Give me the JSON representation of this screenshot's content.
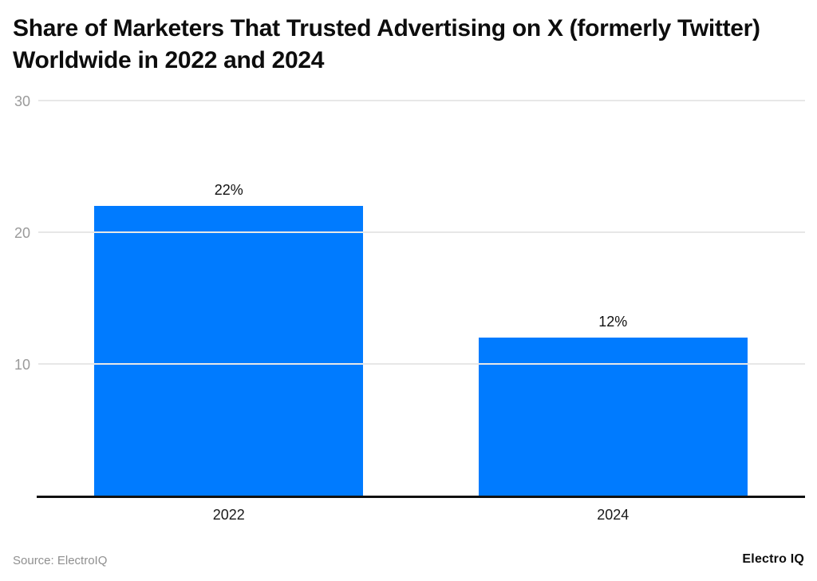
{
  "title": "Share of Marketers That Trusted Advertising on X (formerly Twitter) Worldwide in 2022 and 2024",
  "footer": {
    "source": "Source: ElectroIQ",
    "brand": "Electro IQ"
  },
  "colors": {
    "bar": "#007bff",
    "gridline": "#e7e7e7",
    "axis_label": "#9a9a9a",
    "text": "#111111",
    "baseline": "#111111",
    "background": "#ffffff"
  },
  "chart_data": {
    "type": "bar",
    "title": "Share of Marketers That Trusted Advertising on X (formerly Twitter) Worldwide in 2022 and 2024",
    "categories": [
      "2022",
      "2024"
    ],
    "values": [
      22,
      12
    ],
    "value_labels": [
      "22%",
      "12%"
    ],
    "xlabel": "",
    "ylabel": "",
    "ylim": [
      0,
      30
    ],
    "yticks": [
      10,
      20,
      30
    ],
    "grid": true,
    "legend": false,
    "bar_color": "#007bff",
    "unit": "%"
  }
}
